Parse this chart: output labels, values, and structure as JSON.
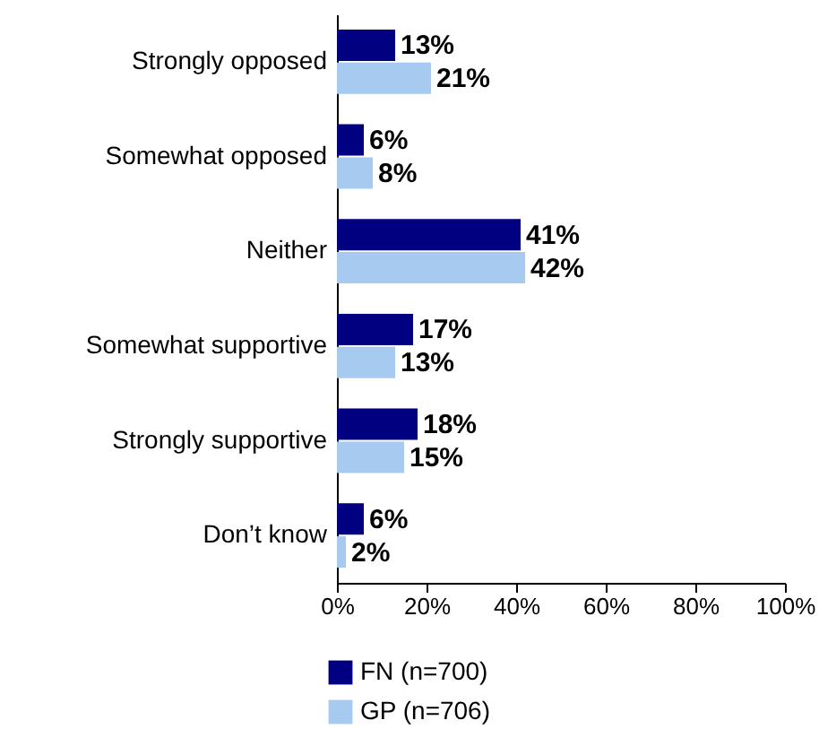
{
  "chart_data": {
    "type": "bar",
    "orientation": "horizontal",
    "categories": [
      "Strongly opposed",
      "Somewhat opposed",
      "Neither",
      "Somewhat supportive",
      "Strongly supportive",
      "Don’t know"
    ],
    "series": [
      {
        "name": "FN (n=700)",
        "color": "#000080",
        "values": [
          13,
          6,
          41,
          17,
          18,
          6
        ],
        "value_labels": [
          "13%",
          "6%",
          "41%",
          "17%",
          "18%",
          "6%"
        ]
      },
      {
        "name": "GP (n=706)",
        "color": "#a6caf0",
        "values": [
          21,
          8,
          42,
          13,
          15,
          2
        ],
        "value_labels": [
          "21%",
          "8%",
          "42%",
          "13%",
          "15%",
          "2%"
        ]
      }
    ],
    "xlim": [
      0,
      100
    ],
    "xticks": [
      {
        "value": 0,
        "label": "0%"
      },
      {
        "value": 20,
        "label": "20%"
      },
      {
        "value": 40,
        "label": "40%"
      },
      {
        "value": 60,
        "label": "60%"
      },
      {
        "value": 80,
        "label": "80%"
      },
      {
        "value": 100,
        "label": "100%"
      }
    ],
    "legend": "bottom left"
  }
}
